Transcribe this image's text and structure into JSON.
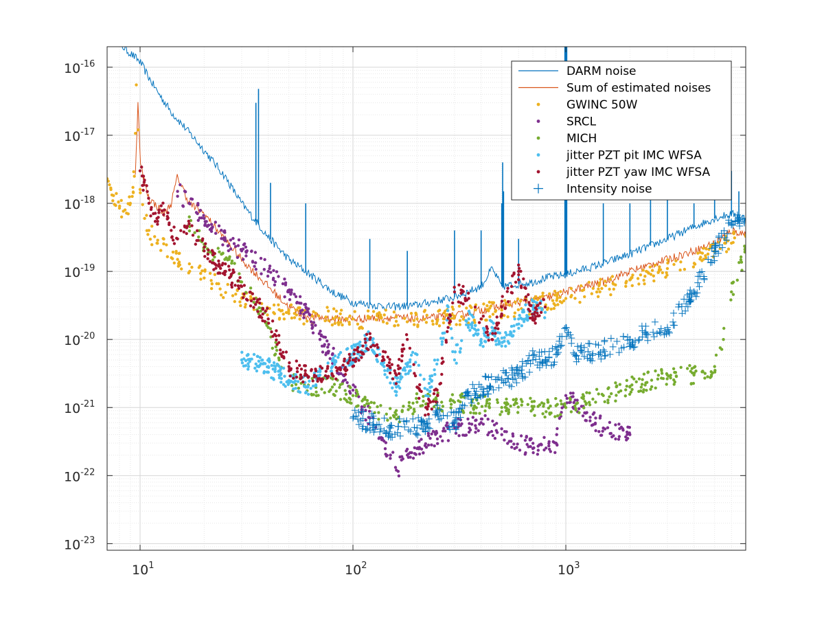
{
  "chart_data": {
    "type": "scatter",
    "title": "",
    "xlabel": "",
    "ylabel": "",
    "xscale": "log",
    "yscale": "log",
    "xlim": [
      7,
      7000
    ],
    "ylim": [
      8e-24,
      2e-16
    ],
    "grid": true,
    "minor_grid": true,
    "legend_position": "top-right",
    "x_ticks": [
      {
        "base": "10",
        "exp": "1",
        "value": 10
      },
      {
        "base": "10",
        "exp": "2",
        "value": 100
      },
      {
        "base": "10",
        "exp": "3",
        "value": 1000
      }
    ],
    "y_ticks": [
      {
        "base": "10",
        "exp": "-16",
        "value": 1e-16
      },
      {
        "base": "10",
        "exp": "-17",
        "value": 1e-17
      },
      {
        "base": "10",
        "exp": "-18",
        "value": 1e-18
      },
      {
        "base": "10",
        "exp": "-19",
        "value": 1e-19
      },
      {
        "base": "10",
        "exp": "-20",
        "value": 1e-20
      },
      {
        "base": "10",
        "exp": "-21",
        "value": 1e-21
      },
      {
        "base": "10",
        "exp": "-22",
        "value": 1e-22
      },
      {
        "base": "10",
        "exp": "-23",
        "value": 1e-23
      }
    ],
    "series": [
      {
        "name": "DARM noise",
        "style": "line",
        "color": "#0072BD",
        "x": [
          7.5,
          8,
          9,
          10,
          11,
          12,
          14,
          17,
          20,
          25,
          30,
          40,
          50,
          60,
          70,
          80,
          100,
          150,
          200,
          300,
          400,
          450,
          500,
          600,
          700,
          800,
          1000,
          1500,
          2000,
          3000,
          4000,
          5000,
          6000,
          7000
        ],
        "y": [
          2.5e-16,
          2.2e-16,
          1.6e-16,
          1.2e-16,
          7e-17,
          4.5e-17,
          2.2e-17,
          1.1e-17,
          6e-18,
          2.5e-18,
          1e-18,
          3.2e-19,
          1.5e-19,
          1e-19,
          7e-20,
          5e-20,
          3.5e-20,
          3e-20,
          3.2e-20,
          4.2e-20,
          6e-20,
          1.1e-19,
          6e-20,
          6.5e-20,
          7e-20,
          8e-20,
          9e-20,
          1.3e-19,
          1.8e-19,
          3e-19,
          4.5e-19,
          6e-19,
          7e-19,
          6e-19
        ],
        "lines": [
          {
            "x": 35,
            "top": 3e-17
          },
          {
            "x": 36,
            "top": 4.8e-17
          },
          {
            "x": 41,
            "top": 2e-18
          },
          {
            "x": 60,
            "top": 1e-18
          },
          {
            "x": 120,
            "top": 3e-19
          },
          {
            "x": 180,
            "top": 2e-19
          },
          {
            "x": 300,
            "top": 4e-19
          },
          {
            "x": 400,
            "top": 4e-19
          },
          {
            "x": 500,
            "top": 1e-18
          },
          {
            "x": 505,
            "top": 4e-18
          },
          {
            "x": 510,
            "top": 1.5e-18
          },
          {
            "x": 600,
            "top": 3e-19
          },
          {
            "x": 990,
            "top": 2e-16
          },
          {
            "x": 1000,
            "top": 2e-16
          },
          {
            "x": 1010,
            "top": 2e-16
          },
          {
            "x": 1500,
            "top": 1e-18
          },
          {
            "x": 2000,
            "top": 1e-18
          },
          {
            "x": 2500,
            "top": 1.2e-18
          },
          {
            "x": 3000,
            "top": 1.5e-18
          },
          {
            "x": 4000,
            "top": 1e-18
          },
          {
            "x": 5000,
            "top": 2e-18
          },
          {
            "x": 6000,
            "top": 3e-18
          },
          {
            "x": 6500,
            "top": 1.5e-18
          }
        ]
      },
      {
        "name": "Sum of estimated noises",
        "style": "line",
        "color": "#D95319",
        "x": [
          9.5,
          9.8,
          10,
          10.5,
          11,
          12,
          13,
          14,
          15,
          17,
          20,
          25,
          30,
          40,
          50,
          60,
          80,
          100,
          150,
          200,
          300,
          400,
          600,
          800,
          1000,
          1500,
          2000,
          3000,
          4000,
          5000,
          6000,
          7000
        ],
        "y": [
          3e-18,
          3.5e-17,
          4e-18,
          2e-18,
          1.2e-18,
          9e-19,
          7e-19,
          1e-18,
          2.5e-18,
          1e-18,
          7e-19,
          3e-19,
          1.5e-19,
          6e-20,
          3e-20,
          2.2e-20,
          2e-20,
          2e-20,
          2.1e-20,
          2e-20,
          2.2e-20,
          2.7e-20,
          3.5e-20,
          4e-20,
          5e-20,
          7e-20,
          1e-19,
          1.5e-19,
          2e-19,
          2.6e-19,
          4e-19,
          3.5e-19
        ]
      },
      {
        "name": "GWINC 50W",
        "style": "dots",
        "color": "#EDB120",
        "x": [
          7,
          7.5,
          8,
          8.5,
          9,
          9.4,
          9.6,
          9.8,
          10,
          10.5,
          11,
          12,
          15,
          20,
          30,
          50,
          100,
          200,
          300,
          500,
          1000,
          2000,
          3000,
          5000,
          7000
        ],
        "y": [
          2.3e-18,
          1.3e-18,
          8.5e-19,
          8e-19,
          1e-18,
          2.5e-18,
          5.5e-17,
          1.2e-17,
          1.6e-18,
          6e-19,
          4e-19,
          2.6e-19,
          1.5e-19,
          8e-20,
          4e-20,
          2.4e-20,
          2e-20,
          2e-20,
          2.2e-20,
          2.7e-20,
          4e-20,
          7.5e-20,
          1.1e-19,
          2e-19,
          3.4e-19
        ]
      },
      {
        "name": "SRCL",
        "style": "dots",
        "color": "#7E2F8E",
        "x": [
          15,
          17,
          20,
          25,
          30,
          40,
          50,
          60,
          70,
          80,
          90,
          100,
          120,
          150,
          160,
          180,
          200,
          300,
          400,
          500,
          700,
          900,
          1000,
          1500,
          2000
        ],
        "y": [
          1.5e-18,
          1e-18,
          6e-19,
          3e-19,
          2e-19,
          1e-19,
          5e-20,
          2.5e-20,
          1e-20,
          6e-21,
          3e-21,
          1.8e-21,
          7e-22,
          2e-22,
          1.2e-22,
          2e-22,
          2.5e-22,
          5e-22,
          6e-22,
          4e-22,
          2.5e-22,
          3e-22,
          1.5e-21,
          5e-22,
          4e-22
        ]
      },
      {
        "name": "MICH",
        "style": "dots",
        "color": "#77AC30",
        "x": [
          17,
          20,
          25,
          30,
          35,
          40,
          45,
          50,
          60,
          80,
          100,
          120,
          150,
          200,
          300,
          500,
          700,
          1000,
          1500,
          2000,
          3000,
          4000,
          5000,
          5500,
          6000,
          7000
        ],
        "y": [
          5e-19,
          2.5e-19,
          1.5e-19,
          7e-20,
          4e-20,
          1.5e-20,
          5e-21,
          2.5e-21,
          2e-21,
          2e-21,
          1.5e-21,
          1e-21,
          7e-22,
          1.2e-21,
          1.2e-21,
          1e-21,
          1e-21,
          1e-21,
          1.5e-21,
          2e-21,
          3e-21,
          3e-21,
          4e-21,
          1e-20,
          5e-20,
          2e-19
        ]
      },
      {
        "name": "jitter PZT pit IMC WFSA",
        "style": "dots",
        "color": "#4DBEEE",
        "x": [
          30,
          40,
          45,
          50,
          60,
          70,
          80,
          100,
          120,
          140,
          160,
          180,
          200,
          220,
          250,
          280,
          300,
          350,
          400,
          450,
          500,
          600,
          700,
          800
        ],
        "y": [
          5e-21,
          4e-21,
          3e-21,
          2.5e-21,
          2e-21,
          3e-21,
          4e-21,
          6e-21,
          1e-20,
          4e-21,
          2e-21,
          4e-21,
          6e-21,
          1.5e-21,
          5e-21,
          3e-20,
          5e-21,
          2e-20,
          1e-20,
          1.5e-20,
          8e-21,
          2e-20,
          3e-20,
          2.5e-20
        ]
      },
      {
        "name": "jitter PZT yaw IMC WFSA",
        "style": "dots",
        "color": "#A2142F",
        "x": [
          10,
          11,
          12,
          13,
          14,
          15,
          17,
          20,
          25,
          30,
          40,
          50,
          60,
          80,
          100,
          120,
          140,
          160,
          180,
          200,
          220,
          250,
          280,
          300,
          350,
          400,
          450,
          500,
          600,
          700,
          800
        ],
        "y": [
          3e-18,
          1e-18,
          6e-19,
          8e-19,
          4e-19,
          3e-19,
          5e-19,
          2e-19,
          1e-19,
          6e-20,
          2e-20,
          4e-21,
          3e-21,
          3e-21,
          5e-21,
          1e-20,
          5e-21,
          3e-21,
          1e-20,
          2e-21,
          1e-21,
          1.5e-21,
          1.5e-20,
          5e-20,
          4e-20,
          2e-20,
          1e-20,
          3e-20,
          1e-19,
          2e-20,
          3e-20
        ]
      },
      {
        "name": "Intensity noise",
        "style": "plus",
        "color": "#0072BD",
        "x": [
          100,
          120,
          150,
          200,
          250,
          300,
          350,
          400,
          500,
          600,
          700,
          800,
          900,
          1000,
          1100,
          1500,
          2000,
          3000,
          4000,
          5000,
          6000,
          7000
        ],
        "y": [
          7e-22,
          6e-22,
          5e-22,
          5e-22,
          8e-22,
          6e-22,
          1.5e-21,
          2e-21,
          2.5e-21,
          3e-21,
          5e-21,
          5e-21,
          6e-21,
          1.5e-20,
          6e-21,
          7e-21,
          1e-20,
          1.5e-20,
          5e-20,
          2e-19,
          5e-19,
          6e-19
        ]
      }
    ]
  }
}
